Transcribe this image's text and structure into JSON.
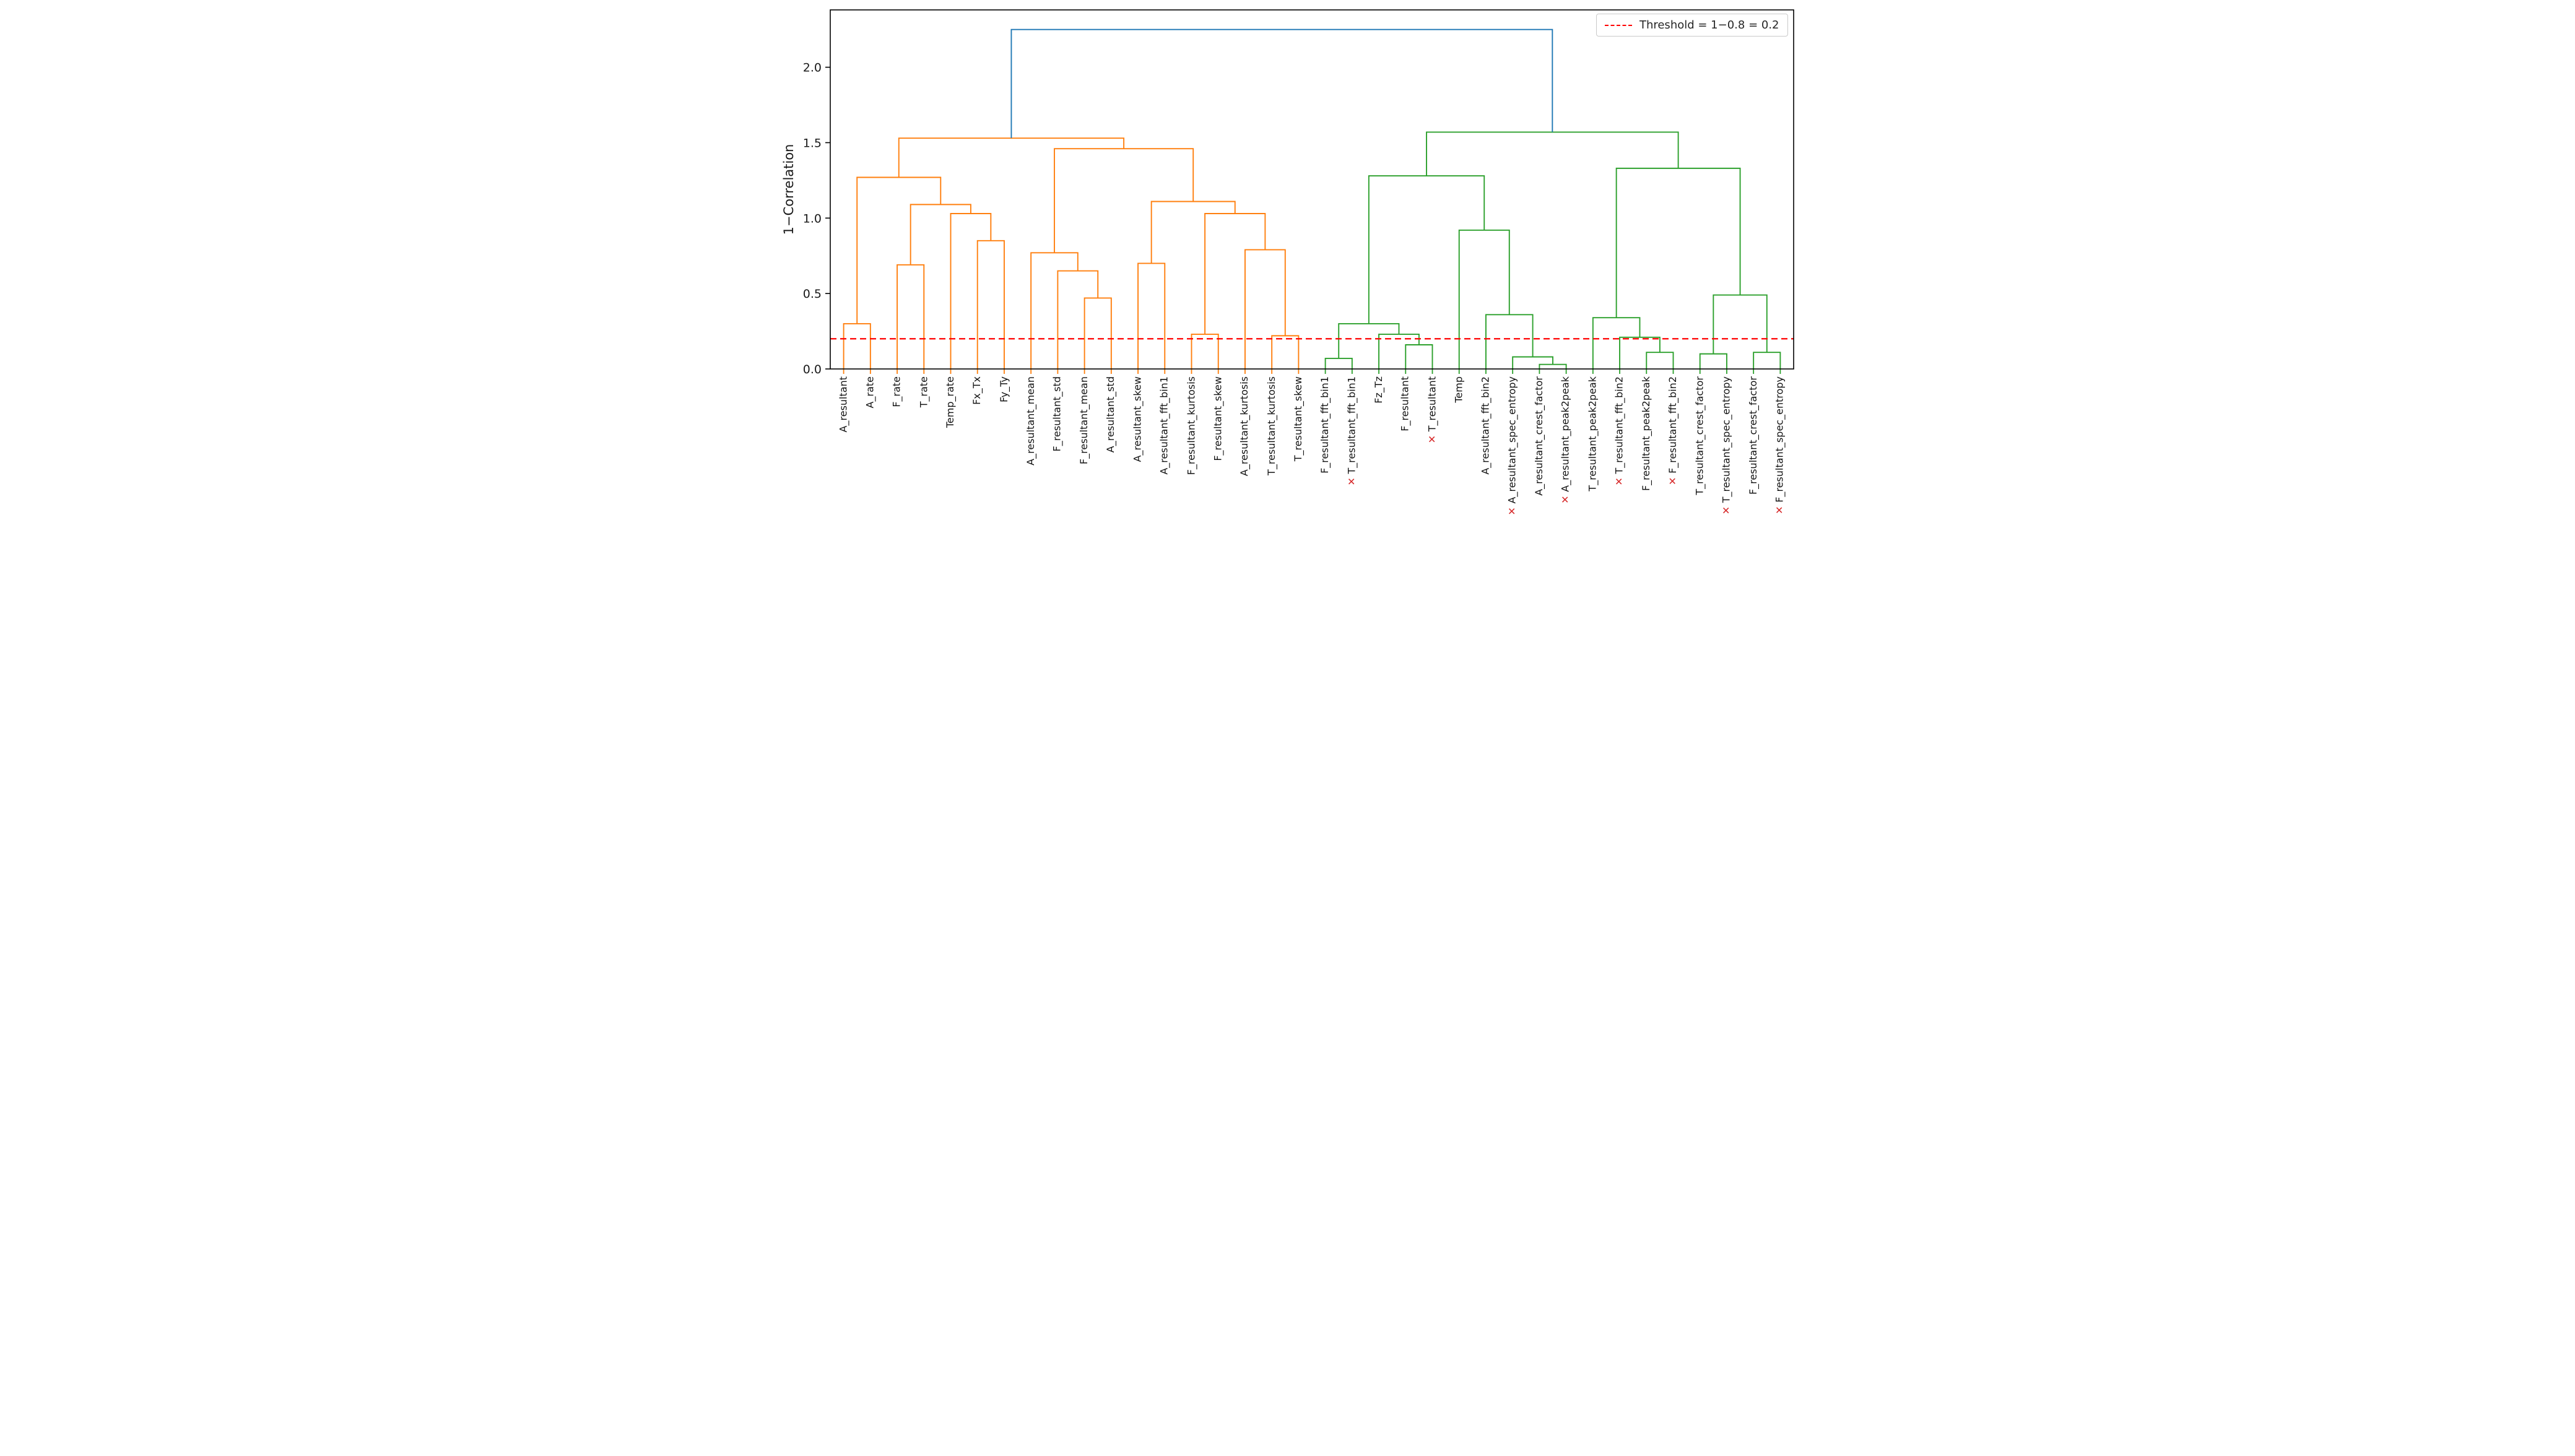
{
  "palette": {
    "orange": "#ff7f0e",
    "green": "#2ca02c",
    "blue": "#1f77b4",
    "threshold_red": "#ff0000",
    "excluded_red": "#d62728",
    "axis": "#000000",
    "text": "#1a1a1a"
  },
  "excluded_marker": "✕",
  "chart_data": {
    "type": "dendrogram",
    "title": "",
    "ylabel": "1−Correlation",
    "ylim": [
      0,
      2.38
    ],
    "yticks": [
      0.0,
      0.5,
      1.0,
      1.5,
      2.0
    ],
    "grid": false,
    "threshold": {
      "value": 0.2,
      "label": "Threshold = 1−0.8 = 0.2",
      "color_key": "threshold_red"
    },
    "legend_position": "upper right",
    "leaves": [
      {
        "label": "A_resultant",
        "excluded": false,
        "cluster": "orange"
      },
      {
        "label": "A_rate",
        "excluded": false,
        "cluster": "orange"
      },
      {
        "label": "F_rate",
        "excluded": false,
        "cluster": "orange"
      },
      {
        "label": "T_rate",
        "excluded": false,
        "cluster": "orange"
      },
      {
        "label": "Temp_rate",
        "excluded": false,
        "cluster": "orange"
      },
      {
        "label": "Fx_Tx",
        "excluded": false,
        "cluster": "orange"
      },
      {
        "label": "Fy_Ty",
        "excluded": false,
        "cluster": "orange"
      },
      {
        "label": "A_resultant_mean",
        "excluded": false,
        "cluster": "orange"
      },
      {
        "label": "F_resultant_std",
        "excluded": false,
        "cluster": "orange"
      },
      {
        "label": "F_resultant_mean",
        "excluded": false,
        "cluster": "orange"
      },
      {
        "label": "A_resultant_std",
        "excluded": false,
        "cluster": "orange"
      },
      {
        "label": "A_resultant_skew",
        "excluded": false,
        "cluster": "orange"
      },
      {
        "label": "A_resultant_fft_bin1",
        "excluded": false,
        "cluster": "orange"
      },
      {
        "label": "F_resultant_kurtosis",
        "excluded": false,
        "cluster": "orange"
      },
      {
        "label": "F_resultant_skew",
        "excluded": false,
        "cluster": "orange"
      },
      {
        "label": "A_resultant_kurtosis",
        "excluded": false,
        "cluster": "orange"
      },
      {
        "label": "T_resultant_kurtosis",
        "excluded": false,
        "cluster": "orange"
      },
      {
        "label": "T_resultant_skew",
        "excluded": false,
        "cluster": "orange"
      },
      {
        "label": "F_resultant_fft_bin1",
        "excluded": false,
        "cluster": "green"
      },
      {
        "label": "T_resultant_fft_bin1",
        "excluded": true,
        "cluster": "green"
      },
      {
        "label": "Fz_Tz",
        "excluded": false,
        "cluster": "green"
      },
      {
        "label": "F_resultant",
        "excluded": false,
        "cluster": "green"
      },
      {
        "label": "T_resultant",
        "excluded": true,
        "cluster": "green"
      },
      {
        "label": "Temp",
        "excluded": false,
        "cluster": "green"
      },
      {
        "label": "A_resultant_fft_bin2",
        "excluded": false,
        "cluster": "green"
      },
      {
        "label": "A_resultant_spec_entropy",
        "excluded": true,
        "cluster": "green"
      },
      {
        "label": "A_resultant_crest_factor",
        "excluded": false,
        "cluster": "green"
      },
      {
        "label": "A_resultant_peak2peak",
        "excluded": true,
        "cluster": "green"
      },
      {
        "label": "T_resultant_peak2peak",
        "excluded": false,
        "cluster": "green"
      },
      {
        "label": "T_resultant_fft_bin2",
        "excluded": true,
        "cluster": "green"
      },
      {
        "label": "F_resultant_peak2peak",
        "excluded": false,
        "cluster": "green"
      },
      {
        "label": "F_resultant_fft_bin2",
        "excluded": true,
        "cluster": "green"
      },
      {
        "label": "T_resultant_crest_factor",
        "excluded": false,
        "cluster": "green"
      },
      {
        "label": "T_resultant_spec_entropy",
        "excluded": true,
        "cluster": "green"
      },
      {
        "label": "F_resultant_crest_factor",
        "excluded": false,
        "cluster": "green"
      },
      {
        "label": "F_resultant_spec_entropy",
        "excluded": true,
        "cluster": "green"
      }
    ],
    "links": [
      {
        "id": "M1",
        "a": "L0",
        "b": "L1",
        "h": 0.3,
        "color": "orange"
      },
      {
        "id": "M2",
        "a": "L2",
        "b": "L3",
        "h": 0.69,
        "color": "orange"
      },
      {
        "id": "M3",
        "a": "L5",
        "b": "L6",
        "h": 0.85,
        "color": "orange"
      },
      {
        "id": "M4",
        "a": "L4",
        "b": "M3",
        "h": 1.03,
        "color": "orange"
      },
      {
        "id": "M5",
        "a": "M2",
        "b": "M4",
        "h": 1.09,
        "color": "orange"
      },
      {
        "id": "M6",
        "a": "M1",
        "b": "M5",
        "h": 1.27,
        "color": "orange"
      },
      {
        "id": "M7",
        "a": "L9",
        "b": "L10",
        "h": 0.47,
        "color": "orange"
      },
      {
        "id": "M8",
        "a": "L8",
        "b": "M7",
        "h": 0.65,
        "color": "orange"
      },
      {
        "id": "M9",
        "a": "L7",
        "b": "M8",
        "h": 0.77,
        "color": "orange"
      },
      {
        "id": "M10",
        "a": "L11",
        "b": "L12",
        "h": 0.7,
        "color": "orange"
      },
      {
        "id": "M11",
        "a": "L13",
        "b": "L14",
        "h": 0.23,
        "color": "orange"
      },
      {
        "id": "M12",
        "a": "L16",
        "b": "L17",
        "h": 0.22,
        "color": "orange"
      },
      {
        "id": "M13",
        "a": "L15",
        "b": "M12",
        "h": 0.79,
        "color": "orange"
      },
      {
        "id": "M14",
        "a": "M11",
        "b": "M13",
        "h": 1.03,
        "color": "orange"
      },
      {
        "id": "M15",
        "a": "M10",
        "b": "M14",
        "h": 1.11,
        "color": "orange"
      },
      {
        "id": "M16",
        "a": "M9",
        "b": "M15",
        "h": 1.46,
        "color": "orange"
      },
      {
        "id": "M17",
        "a": "M6",
        "b": "M16",
        "h": 1.53,
        "color": "orange"
      },
      {
        "id": "M18",
        "a": "L18",
        "b": "L19",
        "h": 0.07,
        "color": "green"
      },
      {
        "id": "M19",
        "a": "L21",
        "b": "L22",
        "h": 0.16,
        "color": "green"
      },
      {
        "id": "M20",
        "a": "L20",
        "b": "M19",
        "h": 0.23,
        "color": "green"
      },
      {
        "id": "M21",
        "a": "M18",
        "b": "M20",
        "h": 0.3,
        "color": "green"
      },
      {
        "id": "M22",
        "a": "L26",
        "b": "L27",
        "h": 0.03,
        "color": "green"
      },
      {
        "id": "M23",
        "a": "L25",
        "b": "M22",
        "h": 0.08,
        "color": "green"
      },
      {
        "id": "M24",
        "a": "L24",
        "b": "M23",
        "h": 0.36,
        "color": "green"
      },
      {
        "id": "M25",
        "a": "L23",
        "b": "M24",
        "h": 0.92,
        "color": "green"
      },
      {
        "id": "M26",
        "a": "M21",
        "b": "M25",
        "h": 1.28,
        "color": "green"
      },
      {
        "id": "M27",
        "a": "L30",
        "b": "L31",
        "h": 0.11,
        "color": "green"
      },
      {
        "id": "M28",
        "a": "L29",
        "b": "M27",
        "h": 0.21,
        "color": "green"
      },
      {
        "id": "M29",
        "a": "L28",
        "b": "M28",
        "h": 0.34,
        "color": "green"
      },
      {
        "id": "M30",
        "a": "L32",
        "b": "L33",
        "h": 0.1,
        "color": "green"
      },
      {
        "id": "M31",
        "a": "L34",
        "b": "L35",
        "h": 0.11,
        "color": "green"
      },
      {
        "id": "M32",
        "a": "M30",
        "b": "M31",
        "h": 0.49,
        "color": "green"
      },
      {
        "id": "M33",
        "a": "M29",
        "b": "M32",
        "h": 1.33,
        "color": "green"
      },
      {
        "id": "M34",
        "a": "M26",
        "b": "M33",
        "h": 1.57,
        "color": "green"
      },
      {
        "id": "M35",
        "a": "M17",
        "b": "M34",
        "h": 2.25,
        "color": "blue"
      }
    ]
  }
}
